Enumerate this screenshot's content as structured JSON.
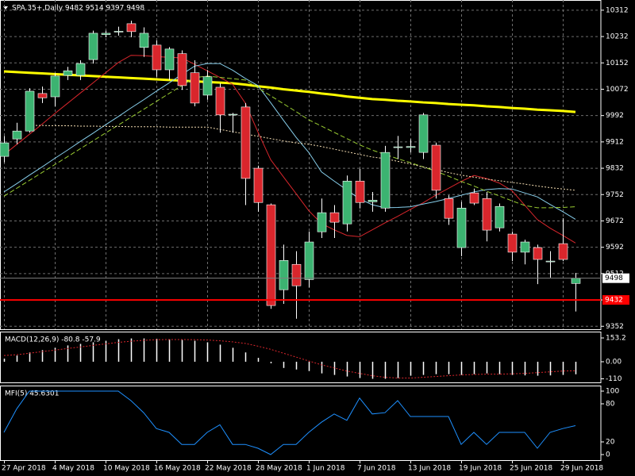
{
  "chart_data": [
    {
      "type": "candlestick",
      "title": "SPA.35+,Daily  9482 9514 9397 9498",
      "categories": [
        "27 Apr 2018",
        null,
        null,
        null,
        "4 May 2018",
        null,
        null,
        null,
        "10 May 2018",
        null,
        null,
        null,
        "16 May 2018",
        null,
        null,
        null,
        "22 May 2018",
        null,
        null,
        null,
        "28 May 2018",
        null,
        null,
        null,
        "1 Jun 2018",
        null,
        null,
        null,
        "7 Jun 2018",
        null,
        null,
        null,
        "13 Jun 2018",
        null,
        null,
        null,
        "19 Jun 2018",
        null,
        null,
        null,
        "25 Jun 2018",
        null,
        null,
        null,
        "29 Jun 2018",
        null
      ],
      "open": [
        9868,
        9921,
        9945,
        10059,
        10049,
        10114,
        10114,
        10162,
        10238,
        10246,
        10271,
        10199,
        10206,
        10131,
        10180,
        10122,
        10054,
        10078,
        9994,
        10018,
        9832,
        9721,
        9463,
        9540,
        9494,
        9639,
        9697,
        9663,
        9793,
        9730,
        9711,
        9895,
        9895,
        9880,
        9902,
        9740,
        9591,
        9757,
        9740,
        9651,
        9632,
        9577,
        9591,
        9548,
        9603,
        9482
      ],
      "high": [
        9930,
        9970,
        10075,
        10080,
        10120,
        10140,
        10160,
        10250,
        10250,
        10262,
        10280,
        10260,
        10220,
        10200,
        10190,
        10160,
        10130,
        10090,
        10000,
        10030,
        9840,
        9725,
        9600,
        9580,
        9640,
        9740,
        9720,
        9810,
        9830,
        9760,
        9900,
        9930,
        9920,
        10000,
        9910,
        9750,
        9730,
        9770,
        9760,
        9725,
        9640,
        9615,
        9600,
        9580,
        9680,
        9514
      ],
      "low": [
        9850,
        9905,
        9940,
        10030,
        10020,
        10100,
        10100,
        10150,
        10230,
        10235,
        10230,
        10170,
        10110,
        10100,
        10070,
        10020,
        10040,
        9940,
        9940,
        9720,
        9700,
        9405,
        9420,
        9375,
        9470,
        9620,
        9620,
        9640,
        9710,
        9700,
        9700,
        9860,
        9880,
        9860,
        9740,
        9660,
        9565,
        9720,
        9610,
        9640,
        9550,
        9540,
        9480,
        9500,
        9550,
        9397
      ],
      "close": [
        9909,
        9945,
        10066,
        10046,
        10112,
        10128,
        10150,
        10242,
        10242,
        10248,
        10247,
        10242,
        10131,
        10194,
        10083,
        10030,
        10110,
        9994,
        9996,
        9801,
        9728,
        9415,
        9552,
        9475,
        9608,
        9697,
        9668,
        9793,
        9728,
        9735,
        9880,
        9897,
        9898,
        9994,
        9765,
        9680,
        9711,
        9726,
        9644,
        9716,
        9577,
        9608,
        9555,
        9550,
        9555,
        9498
      ],
      "up_color": "#3cb371",
      "down_color": "#d9262c",
      "wick_color": "#ffffff",
      "series": [
        {
          "color": "#ffff00",
          "width": 3,
          "dash": "none",
          "values": [
            10126,
            10124,
            10122,
            10120,
            10118,
            10116,
            10114,
            10112,
            10110,
            10108,
            10106,
            10104,
            10102,
            10100,
            10098,
            10096,
            10094,
            10092,
            10090,
            10086,
            10081,
            10077,
            10072,
            10068,
            10064,
            10059,
            10055,
            10050,
            10046,
            10042,
            10040,
            10037,
            10035,
            10032,
            10030,
            10027,
            10025,
            10023,
            10020,
            10018,
            10015,
            10013,
            10010,
            10008,
            10006,
            10003
          ]
        },
        {
          "color": "#d9262c",
          "width": 1,
          "dash": "none",
          "values": [
            9873,
            9904,
            9935,
            9966,
            9998,
            10029,
            10060,
            10091,
            10122,
            10153,
            10175,
            10174,
            10171,
            10169,
            10167,
            10148,
            10128,
            10108,
            10087,
            10030,
            9942,
            9858,
            9806,
            9755,
            9703,
            9664,
            9645,
            9628,
            9624,
            9645,
            9666,
            9686,
            9707,
            9727,
            9750,
            9771,
            9792,
            9810,
            9801,
            9787,
            9764,
            9720,
            9676,
            9650,
            9628,
            9605
          ]
        },
        {
          "color": "#87ceeb",
          "width": 1,
          "dash": "none",
          "values": [
            9760,
            9785,
            9811,
            9836,
            9862,
            9887,
            9913,
            9938,
            9964,
            9989,
            10015,
            10040,
            10066,
            10091,
            10117,
            10142,
            10150,
            10150,
            10130,
            10105,
            10083,
            10031,
            9978,
            9926,
            9880,
            9821,
            9793,
            9766,
            9739,
            9721,
            9712,
            9713,
            9715,
            9723,
            9731,
            9740,
            9750,
            9760,
            9767,
            9770,
            9769,
            9757,
            9745,
            9722,
            9700,
            9677
          ]
        },
        {
          "color": "#9acd32",
          "width": 1,
          "dash": "6 3",
          "values": [
            9747,
            9771,
            9795,
            9819,
            9843,
            9867,
            9891,
            9915,
            9939,
            9963,
            9987,
            10011,
            10035,
            10059,
            10083,
            10107,
            10112,
            10108,
            10104,
            10100,
            10076,
            10052,
            10028,
            10004,
            9979,
            9960,
            9941,
            9922,
            9903,
            9887,
            9874,
            9861,
            9849,
            9836,
            9823,
            9808,
            9792,
            9778,
            9762,
            9748,
            9733,
            9719,
            9712,
            9712,
            9713,
            9715
          ]
        },
        {
          "color": "#f5deb3",
          "width": 1,
          "dash": "2 2",
          "values": [
            null,
            null,
            9962,
            9962,
            9961,
            9961,
            9960,
            9960,
            9959,
            9959,
            9958,
            9958,
            9958,
            9957,
            9957,
            9957,
            9957,
            9950,
            9943,
            9936,
            9929,
            9922,
            9915,
            9909,
            9905,
            9898,
            9890,
            9882,
            9874,
            9866,
            9861,
            9853,
            9845,
            9836,
            9828,
            9819,
            9811,
            9805,
            9799,
            9794,
            9789,
            9784,
            9778,
            9773,
            9769,
            9765
          ]
        }
      ],
      "price_lines": [
        {
          "value": 9498,
          "color": "#808080",
          "label_bg": "#ffffff",
          "label_color": "#000000"
        },
        {
          "value": 9432,
          "color": "#ff0000",
          "label_bg": "#ff0000",
          "label_color": "#ffffff"
        }
      ],
      "ylim": [
        9343,
        10343
      ],
      "yticks": [
        10312,
        10232,
        10152,
        10072,
        9992,
        9912,
        9832,
        9752,
        9672,
        9592,
        9512,
        9432,
        9352
      ],
      "grid": true
    },
    {
      "type": "macd",
      "title": "MACD(12,26,9) -80.8 -57.9",
      "histogram": {
        "color": "#ffffff",
        "values": [
          20,
          40,
          60,
          75,
          90,
          105,
          115,
          125,
          135,
          145,
          150,
          150,
          148,
          145,
          140,
          135,
          125,
          110,
          90,
          60,
          25,
          -10,
          -40,
          -50,
          -60,
          -75,
          -85,
          -95,
          -105,
          -110,
          -110,
          -105,
          -90,
          -85,
          -80,
          -80,
          -85,
          -80,
          -75,
          -80,
          -85,
          -88,
          -90,
          -88,
          -85,
          -80.8
        ]
      },
      "signal": {
        "color": "#d9262c",
        "values": [
          40,
          45,
          55,
          65,
          75,
          85,
          95,
          105,
          115,
          125,
          132,
          138,
          142,
          143,
          143,
          142,
          140,
          135,
          128,
          118,
          100,
          80,
          55,
          30,
          5,
          -20,
          -40,
          -60,
          -75,
          -90,
          -100,
          -105,
          -105,
          -100,
          -95,
          -90,
          -85,
          -82,
          -80,
          -80,
          -78,
          -75,
          -70,
          -65,
          -60,
          -57.9
        ]
      },
      "ylim": [
        -133,
        194
      ],
      "yticks": [
        153.2,
        {
          "value": 0,
          "label": "0.00"
        },
        -110
      ]
    },
    {
      "type": "line",
      "title": "MFI(5) 45.6301",
      "color": "#1e90ff",
      "values": [
        35,
        72,
        100,
        100,
        100,
        100,
        100,
        100,
        100,
        100,
        85,
        66,
        41,
        35,
        16,
        16,
        35,
        47,
        16,
        16,
        10,
        0,
        16,
        16,
        35,
        51,
        64,
        54,
        89,
        64,
        66,
        85,
        60,
        60,
        60,
        60,
        16,
        35,
        16,
        35,
        35,
        35,
        10,
        35,
        41,
        45.63
      ],
      "ylim": [
        -8.75,
        108.75
      ],
      "yticks": [
        100,
        80,
        20,
        0
      ]
    }
  ]
}
